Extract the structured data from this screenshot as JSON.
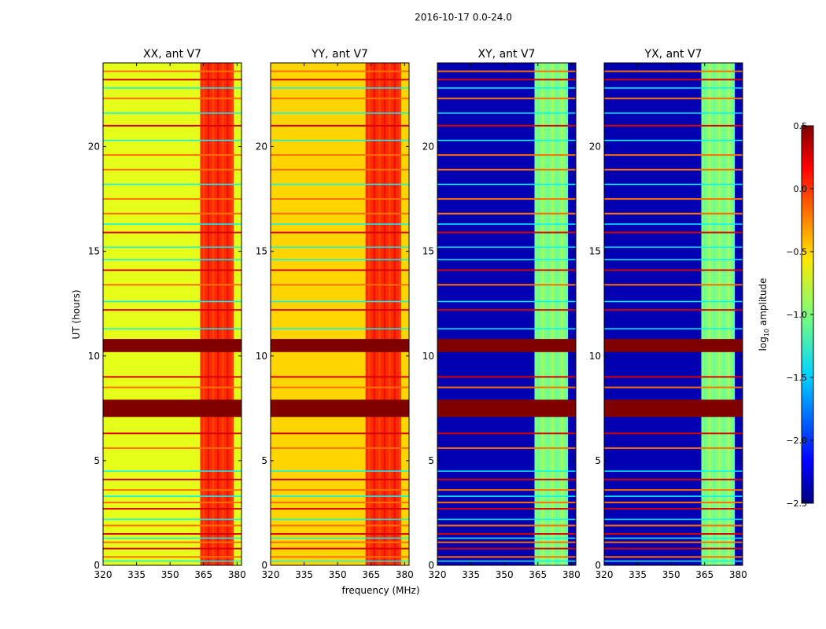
{
  "chart_data": {
    "type": "heatmap",
    "suptitle": "2016-10-17 0.0-24.0",
    "xlabel": "frequency (MHz)",
    "ylabel": "UT (hours)",
    "xlim": [
      320,
      382
    ],
    "ylim": [
      0,
      24
    ],
    "xticks": [
      320,
      335,
      350,
      365,
      380
    ],
    "yticks": [
      0,
      5,
      10,
      15,
      20
    ],
    "colorbar": {
      "label_prefix": "log",
      "label_sub": "10",
      "label_suffix": " amplitude",
      "range": [
        -2.5,
        0.5
      ],
      "ticks": [
        0.5,
        0.0,
        -0.5,
        -1.0,
        -1.5,
        -2.0,
        -2.5
      ],
      "tick_labels": [
        "0.5",
        "0.0",
        "−0.5",
        "−1.0",
        "−1.5",
        "−2.0",
        "−2.5"
      ]
    },
    "panels": [
      {
        "title": "XX, ant V7",
        "background_level": -0.7,
        "band_level": 0.0,
        "band_range_mhz": [
          363.5,
          378.5
        ]
      },
      {
        "title": "YY, ant V7",
        "background_level": -0.5,
        "band_level": 0.0,
        "band_range_mhz": [
          362.5,
          378.5
        ]
      },
      {
        "title": "XY, ant V7",
        "background_level": -2.35,
        "band_level": -1.0,
        "band_range_mhz": [
          363.5,
          378.5
        ]
      },
      {
        "title": "YX, ant V7",
        "background_level": -2.35,
        "band_level": -1.0,
        "band_range_mhz": [
          363.5,
          378.5
        ]
      }
    ],
    "rfi_hours_saturated": [
      7.2,
      7.4,
      7.6,
      7.8,
      10.3,
      10.5,
      10.7
    ],
    "rfi_hours_red": [
      0.8,
      1.5,
      2.7,
      4.1,
      6.3,
      9.0,
      12.2,
      14.1,
      15.9,
      21.0,
      23.2
    ],
    "rfi_hours_orange": [
      0.4,
      1.1,
      1.9,
      3.0,
      3.6,
      5.6,
      8.5,
      13.4,
      16.8,
      17.5,
      18.9,
      19.6,
      22.3,
      23.6
    ],
    "rfi_hours_cyan": [
      0.2,
      1.3,
      2.2,
      3.3,
      4.5,
      11.3,
      12.6,
      14.6,
      15.2,
      16.3,
      18.2,
      20.3,
      21.6,
      22.8
    ]
  }
}
